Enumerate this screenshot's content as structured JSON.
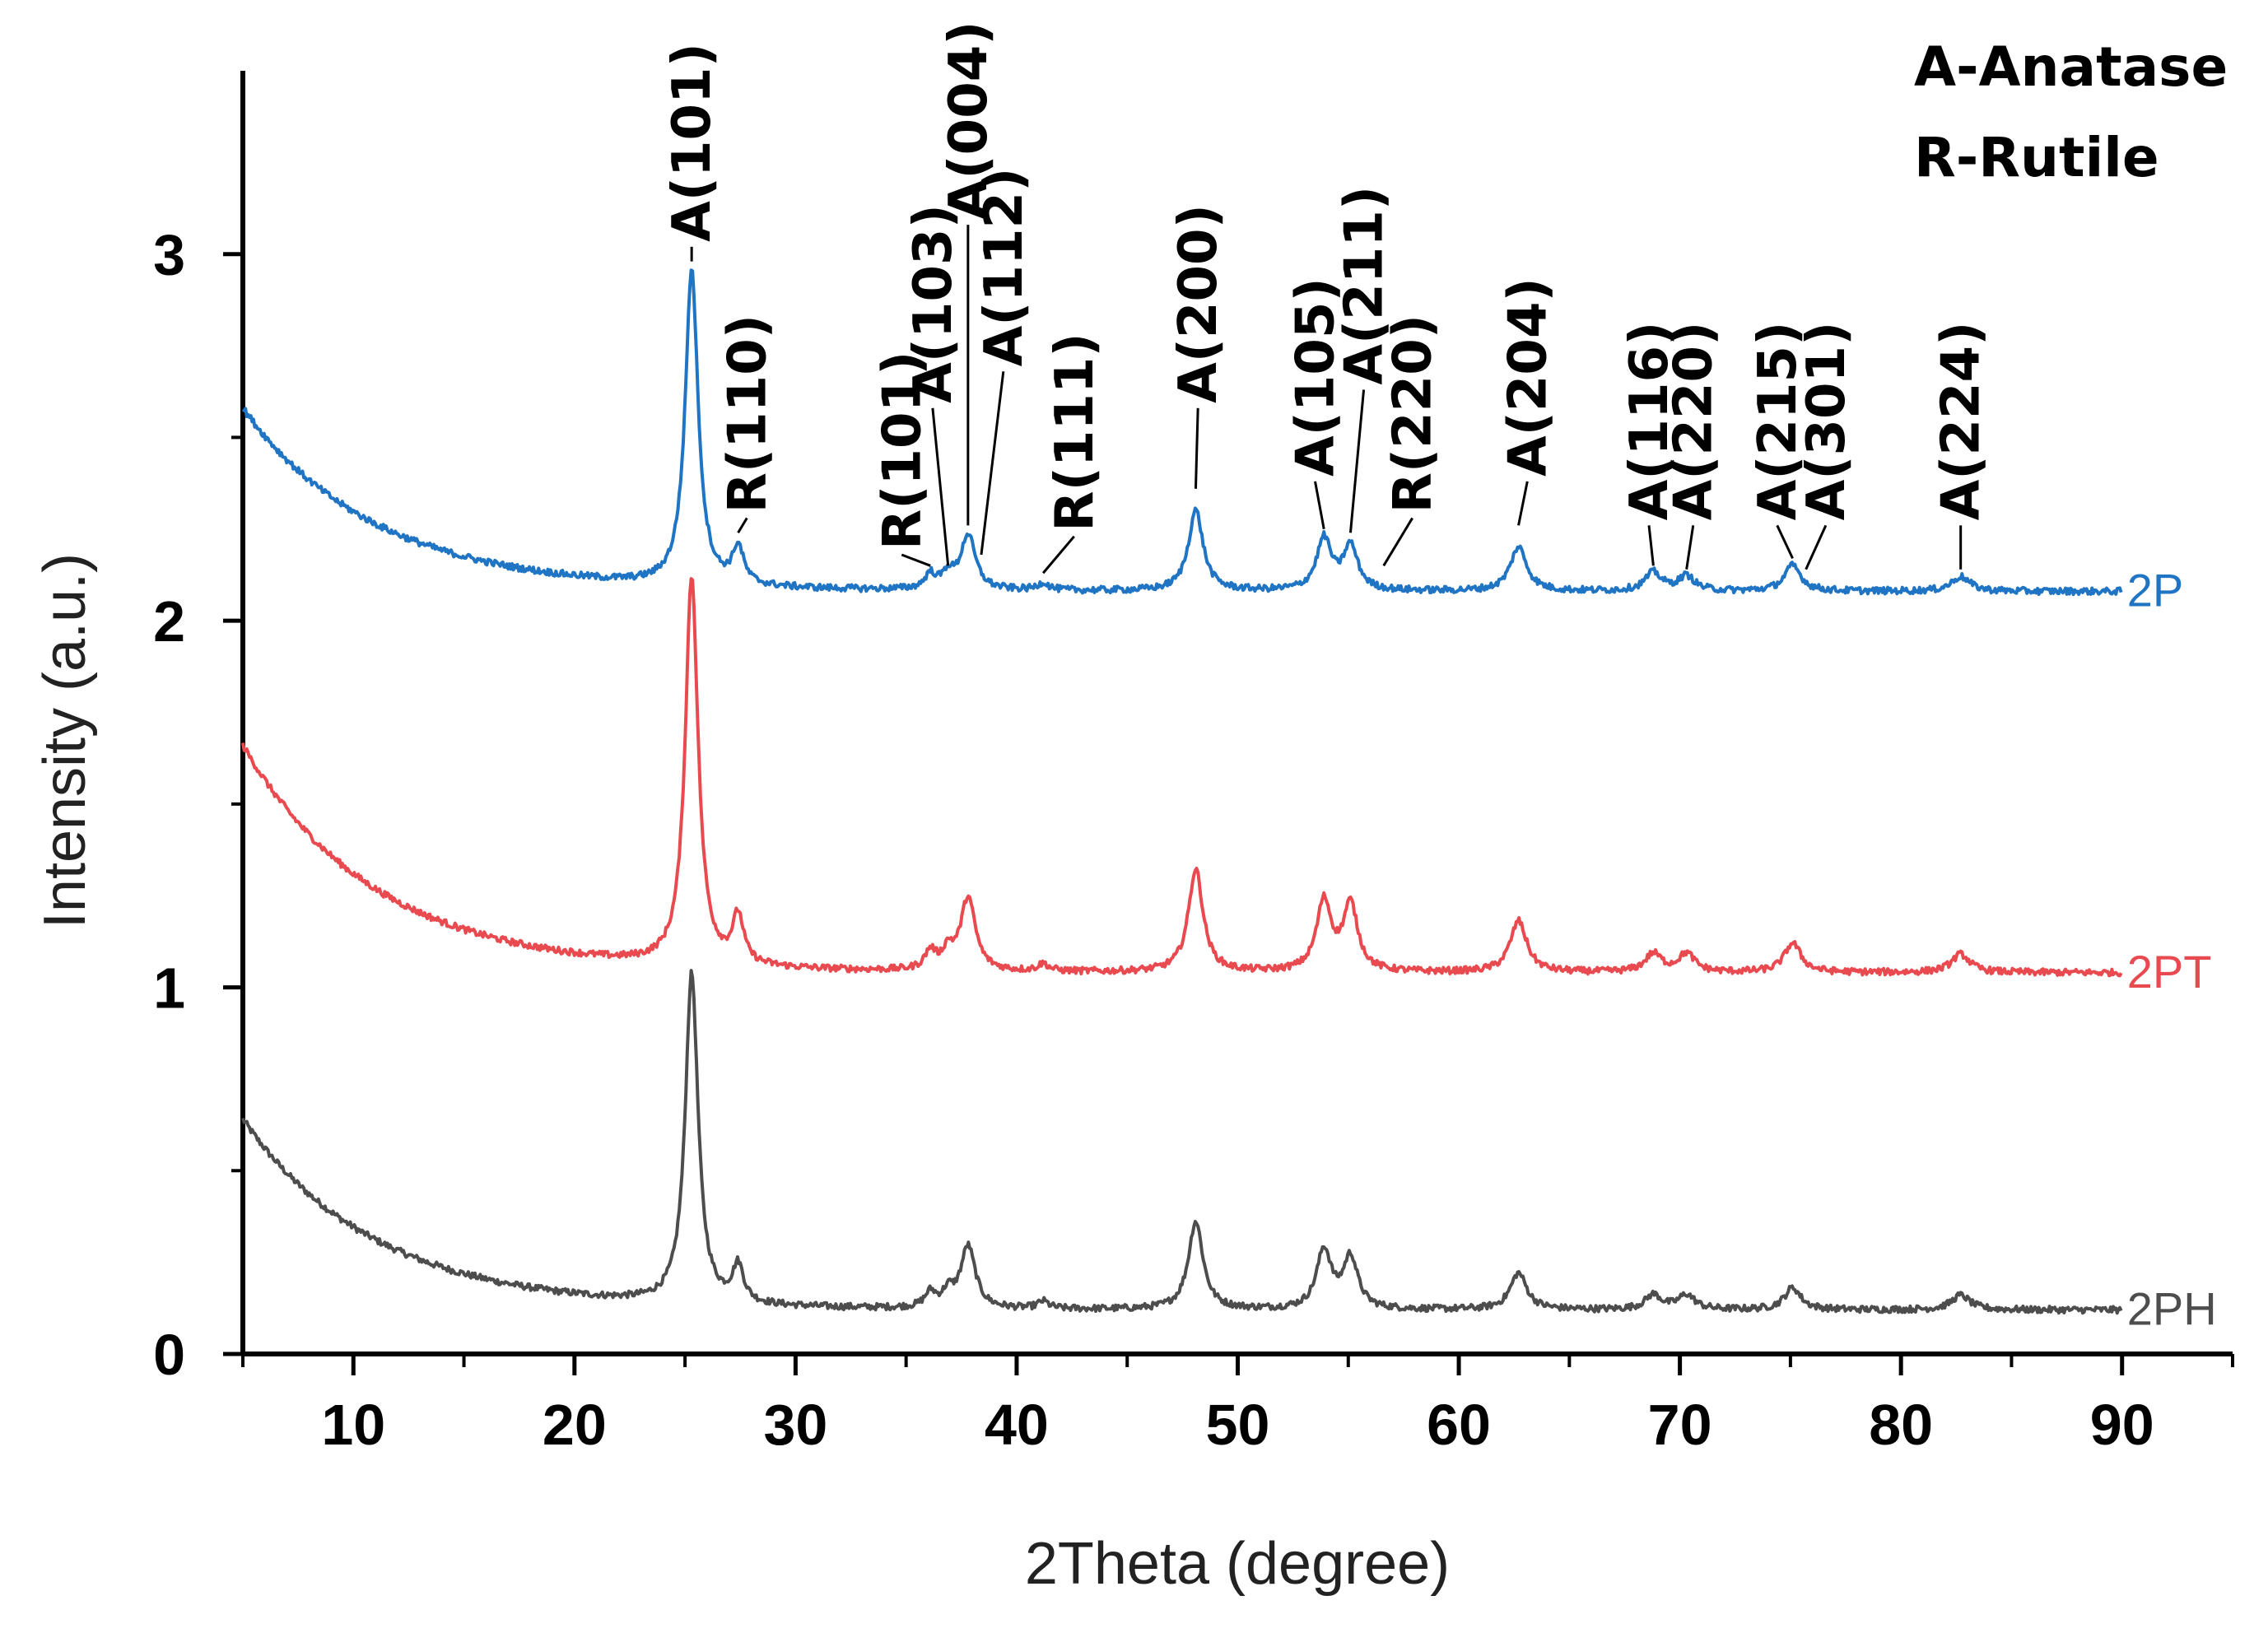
{
  "chart_data": {
    "type": "line",
    "title": "",
    "xlabel": "2Theta (degree)",
    "ylabel": "Intensity (a.u.)",
    "xlim": [
      5,
      95
    ],
    "ylim": [
      0,
      3.5
    ],
    "x_ticks": [
      10,
      20,
      30,
      40,
      50,
      60,
      70,
      80,
      90
    ],
    "y_ticks": [
      0,
      1,
      2,
      3
    ],
    "legend_notes": [
      "A-Anatase",
      "R-Rutile"
    ],
    "series": [
      {
        "name": "2PH",
        "color": "#4d4d4d",
        "baseline": 0.12,
        "background": {
          "start_height": 0.52,
          "decay_deg": 6.0
        },
        "peaks": [
          {
            "x": 25.3,
            "h": 0.9,
            "w": 0.35
          },
          {
            "x": 27.4,
            "h": 0.1,
            "w": 0.3
          },
          {
            "x": 36.1,
            "h": 0.04,
            "w": 0.3
          },
          {
            "x": 36.9,
            "h": 0.04,
            "w": 0.3
          },
          {
            "x": 37.8,
            "h": 0.17,
            "w": 0.4
          },
          {
            "x": 41.2,
            "h": 0.02,
            "w": 0.3
          },
          {
            "x": 48.1,
            "h": 0.24,
            "w": 0.4
          },
          {
            "x": 53.9,
            "h": 0.16,
            "w": 0.4
          },
          {
            "x": 55.1,
            "h": 0.14,
            "w": 0.4
          },
          {
            "x": 62.7,
            "h": 0.1,
            "w": 0.45
          },
          {
            "x": 68.8,
            "h": 0.04,
            "w": 0.45
          },
          {
            "x": 70.3,
            "h": 0.04,
            "w": 0.45
          },
          {
            "x": 75.1,
            "h": 0.06,
            "w": 0.45
          },
          {
            "x": 82.7,
            "h": 0.04,
            "w": 0.5
          }
        ],
        "end_label": "2PH"
      },
      {
        "name": "2PT",
        "color": "#e84a4f",
        "baseline": 1.04,
        "background": {
          "start_height": 0.62,
          "decay_deg": 6.0
        },
        "peaks": [
          {
            "x": 25.3,
            "h": 1.06,
            "w": 0.35
          },
          {
            "x": 27.4,
            "h": 0.13,
            "w": 0.3
          },
          {
            "x": 36.1,
            "h": 0.05,
            "w": 0.3
          },
          {
            "x": 36.9,
            "h": 0.05,
            "w": 0.3
          },
          {
            "x": 37.8,
            "h": 0.2,
            "w": 0.4
          },
          {
            "x": 41.2,
            "h": 0.02,
            "w": 0.3
          },
          {
            "x": 48.1,
            "h": 0.28,
            "w": 0.4
          },
          {
            "x": 53.9,
            "h": 0.19,
            "w": 0.4
          },
          {
            "x": 55.1,
            "h": 0.18,
            "w": 0.4
          },
          {
            "x": 62.7,
            "h": 0.14,
            "w": 0.45
          },
          {
            "x": 68.8,
            "h": 0.05,
            "w": 0.45
          },
          {
            "x": 70.3,
            "h": 0.05,
            "w": 0.45
          },
          {
            "x": 75.1,
            "h": 0.08,
            "w": 0.45
          },
          {
            "x": 82.7,
            "h": 0.05,
            "w": 0.5
          }
        ],
        "end_label": "2PT"
      },
      {
        "name": "2P",
        "color": "#1f74c4",
        "baseline": 2.08,
        "background": {
          "start_height": 0.5,
          "decay_deg": 6.0
        },
        "peaks": [
          {
            "x": 25.3,
            "h": 0.86,
            "w": 0.35
          },
          {
            "x": 27.4,
            "h": 0.1,
            "w": 0.3
          },
          {
            "x": 36.1,
            "h": 0.04,
            "w": 0.3
          },
          {
            "x": 36.9,
            "h": 0.04,
            "w": 0.3
          },
          {
            "x": 37.8,
            "h": 0.15,
            "w": 0.4
          },
          {
            "x": 41.2,
            "h": 0.02,
            "w": 0.3
          },
          {
            "x": 48.1,
            "h": 0.22,
            "w": 0.4
          },
          {
            "x": 53.9,
            "h": 0.14,
            "w": 0.4
          },
          {
            "x": 55.1,
            "h": 0.12,
            "w": 0.4
          },
          {
            "x": 62.7,
            "h": 0.12,
            "w": 0.45
          },
          {
            "x": 68.8,
            "h": 0.05,
            "w": 0.45
          },
          {
            "x": 70.3,
            "h": 0.04,
            "w": 0.45
          },
          {
            "x": 75.1,
            "h": 0.07,
            "w": 0.45
          },
          {
            "x": 82.7,
            "h": 0.04,
            "w": 0.5
          }
        ],
        "end_label": "2P"
      }
    ],
    "peak_annotations": [
      {
        "label": "A(101)",
        "x": 25.3,
        "y": 2.98,
        "text_x": 25.3,
        "text_y": 3.02
      },
      {
        "label": "R(110)",
        "x": 27.4,
        "y": 2.24,
        "text_x": 27.8,
        "text_y": 2.28
      },
      {
        "label": "R(101)",
        "x": 36.1,
        "y": 2.15,
        "text_x": 34.8,
        "text_y": 2.18
      },
      {
        "label": "A(103)",
        "x": 36.9,
        "y": 2.15,
        "text_x": 36.2,
        "text_y": 2.58
      },
      {
        "label": "A(004)",
        "x": 37.8,
        "y": 2.26,
        "text_x": 37.8,
        "text_y": 3.08
      },
      {
        "label": "A(112)",
        "x": 38.4,
        "y": 2.18,
        "text_x": 39.4,
        "text_y": 2.68
      },
      {
        "label": "R(111)",
        "x": 41.2,
        "y": 2.13,
        "text_x": 42.6,
        "text_y": 2.23
      },
      {
        "label": "A(200)",
        "x": 48.1,
        "y": 2.36,
        "text_x": 48.2,
        "text_y": 2.58
      },
      {
        "label": "A(105)",
        "x": 53.9,
        "y": 2.25,
        "text_x": 53.5,
        "text_y": 2.38
      },
      {
        "label": "A(211)",
        "x": 55.1,
        "y": 2.24,
        "text_x": 55.7,
        "text_y": 2.63
      },
      {
        "label": "R(220)",
        "x": 56.6,
        "y": 2.15,
        "text_x": 57.9,
        "text_y": 2.28
      },
      {
        "label": "A(204)",
        "x": 62.7,
        "y": 2.26,
        "text_x": 63.1,
        "text_y": 2.38
      },
      {
        "label": "A(116)",
        "x": 68.8,
        "y": 2.15,
        "text_x": 68.6,
        "text_y": 2.26
      },
      {
        "label": "A(220)",
        "x": 70.3,
        "y": 2.14,
        "text_x": 70.6,
        "text_y": 2.26
      },
      {
        "label": "A(215)",
        "x": 75.1,
        "y": 2.17,
        "text_x": 74.4,
        "text_y": 2.26
      },
      {
        "label": "A(301)",
        "x": 75.7,
        "y": 2.14,
        "text_x": 76.6,
        "text_y": 2.26
      },
      {
        "label": "A(224)",
        "x": 82.7,
        "y": 2.14,
        "text_x": 82.7,
        "text_y": 2.26
      }
    ]
  }
}
